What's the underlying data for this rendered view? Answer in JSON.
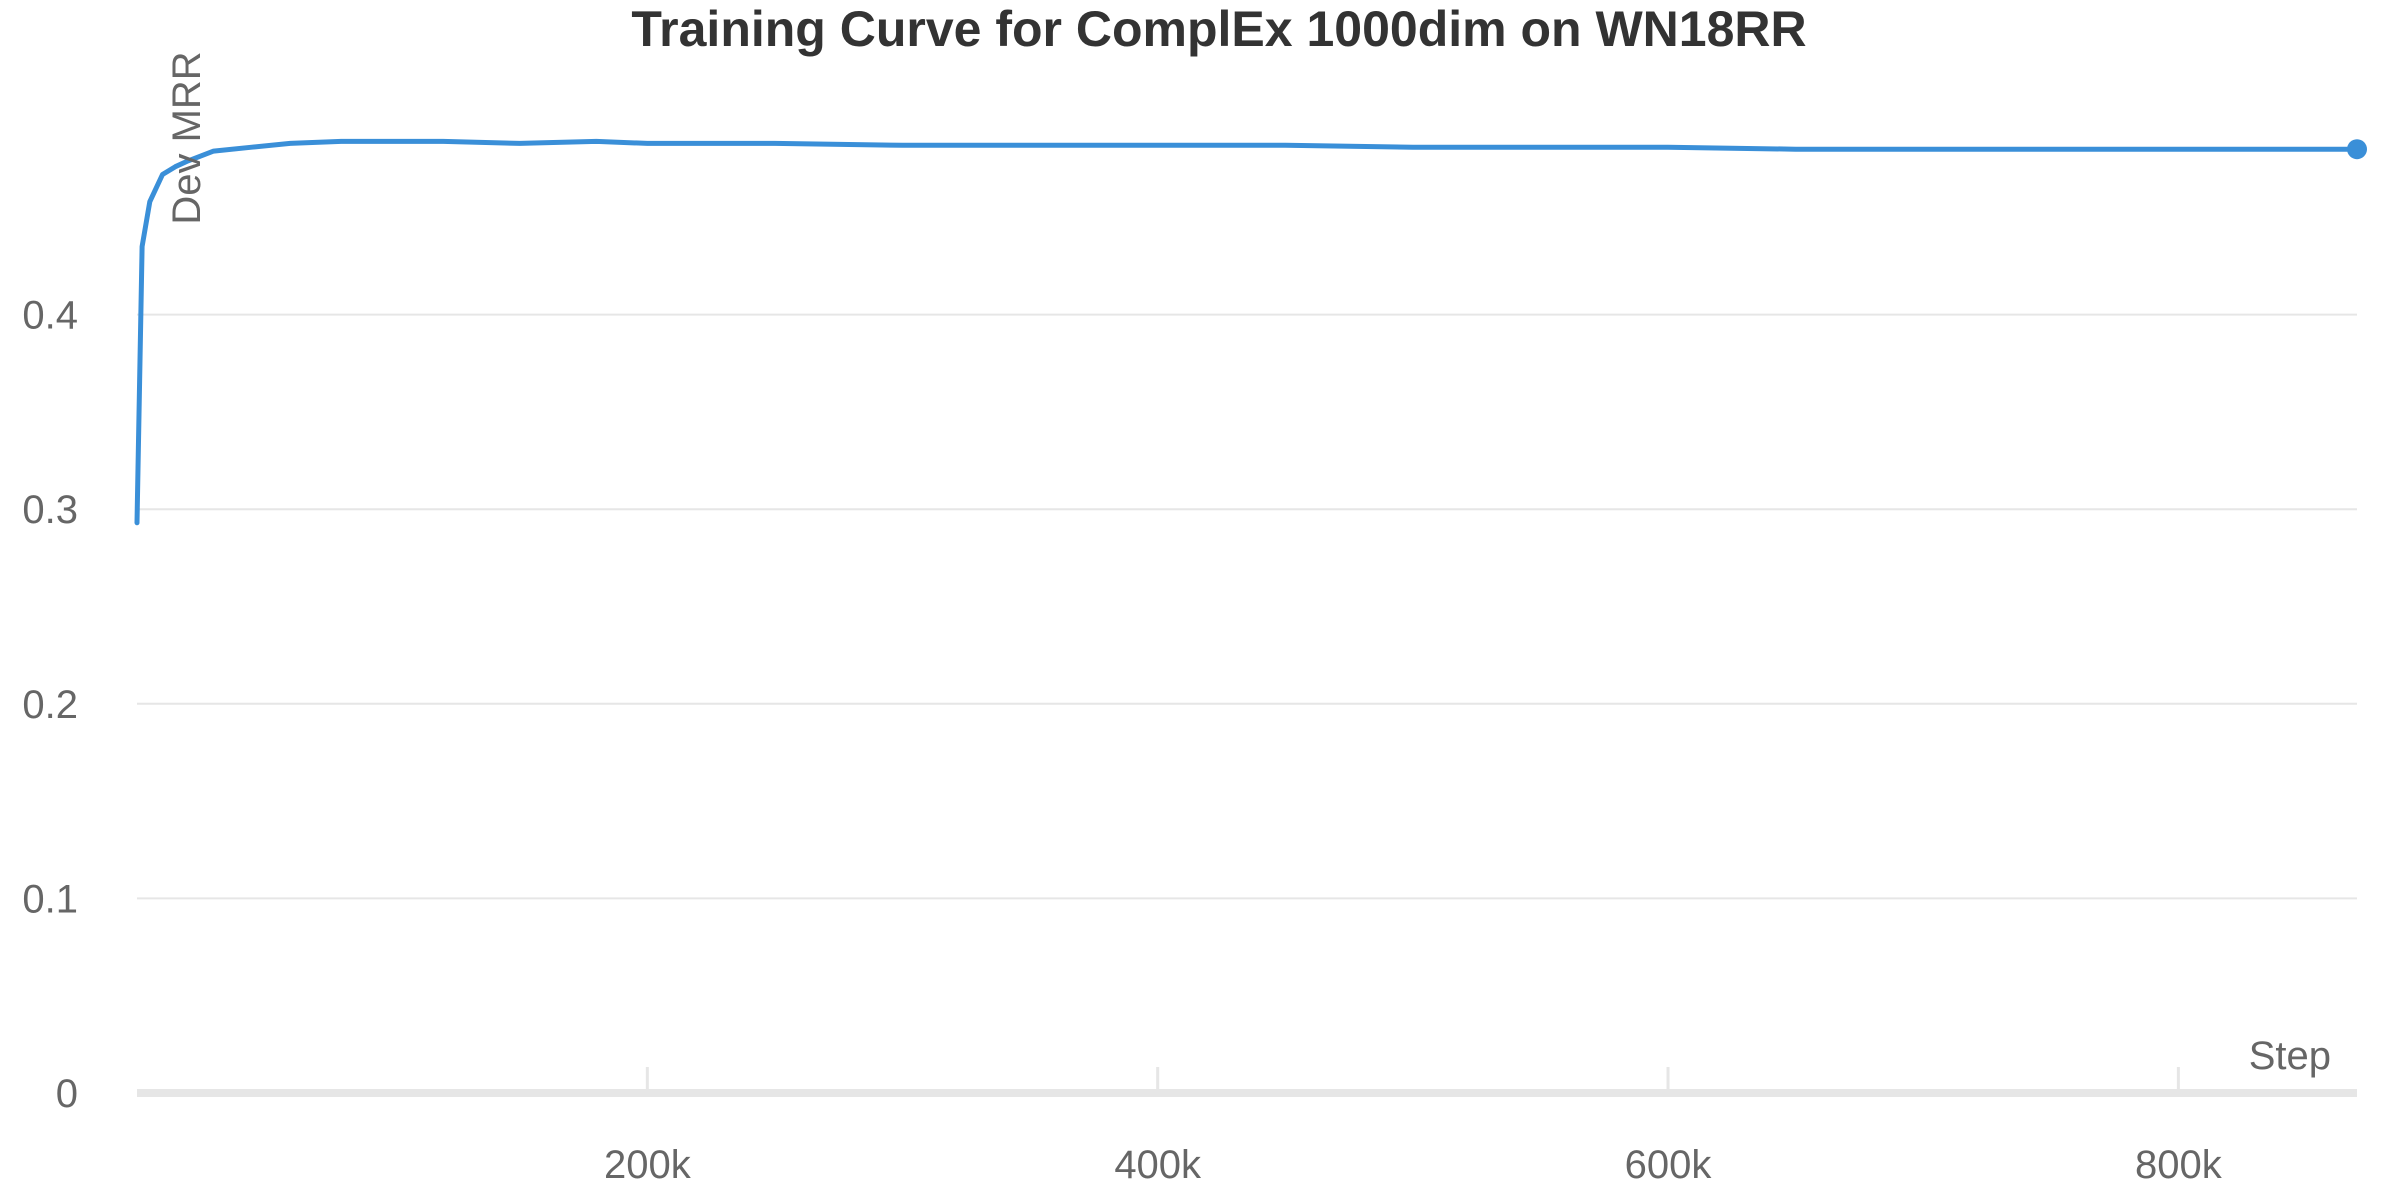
{
  "chart_data": {
    "type": "line",
    "title": "Training Curve for ComplEx 1000dim on WN18RR",
    "xlabel": "Step",
    "ylabel": "Dev MRR",
    "xlim": [
      0,
      870000
    ],
    "ylim": [
      0,
      0.5
    ],
    "x_ticks": [
      {
        "value": 200000,
        "label": "200k"
      },
      {
        "value": 400000,
        "label": "400k"
      },
      {
        "value": 600000,
        "label": "600k"
      },
      {
        "value": 800000,
        "label": "800k"
      }
    ],
    "y_ticks": [
      {
        "value": 0,
        "label": "0"
      },
      {
        "value": 0.1,
        "label": "0.1"
      },
      {
        "value": 0.2,
        "label": "0.2"
      },
      {
        "value": 0.3,
        "label": "0.3"
      },
      {
        "value": 0.4,
        "label": "0.4"
      }
    ],
    "grid": true,
    "legend": "none",
    "colors": {
      "series": "#3a8fd8"
    },
    "series": [
      {
        "x": [
          0,
          2000,
          5000,
          10000,
          15000,
          20000,
          30000,
          45000,
          60000,
          80000,
          100000,
          120000,
          150000,
          180000,
          200000,
          250000,
          300000,
          350000,
          400000,
          450000,
          500000,
          550000,
          600000,
          650000,
          700000,
          750000,
          800000,
          850000,
          870000
        ],
        "y": [
          0.293,
          0.435,
          0.458,
          0.472,
          0.476,
          0.479,
          0.484,
          0.486,
          0.488,
          0.489,
          0.489,
          0.489,
          0.488,
          0.489,
          0.488,
          0.488,
          0.487,
          0.487,
          0.487,
          0.487,
          0.486,
          0.486,
          0.486,
          0.485,
          0.485,
          0.485,
          0.485,
          0.485,
          0.485
        ]
      }
    ]
  }
}
